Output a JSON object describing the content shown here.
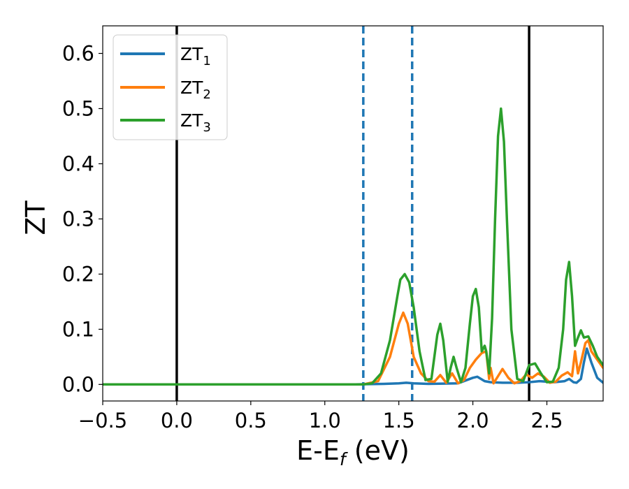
{
  "chart_data": {
    "type": "line",
    "xlabel": "E-E",
    "xlabel_sub": "f",
    "xlabel_unit": " (eV)",
    "ylabel": "ZT",
    "xlim": [
      -0.5,
      2.88
    ],
    "ylim": [
      -0.03,
      0.65
    ],
    "xticks": [
      -0.5,
      0.0,
      0.5,
      1.0,
      1.5,
      2.0,
      2.5
    ],
    "xtick_labels": [
      "−0.5",
      "0.0",
      "0.5",
      "1.0",
      "1.5",
      "2.0",
      "2.5"
    ],
    "yticks": [
      0.0,
      0.1,
      0.2,
      0.3,
      0.4,
      0.5,
      0.6
    ],
    "ytick_labels": [
      "0.0",
      "0.1",
      "0.2",
      "0.3",
      "0.4",
      "0.5",
      "0.6"
    ],
    "grid": false,
    "legend_position": "top-left",
    "vlines": [
      {
        "x": 0.0,
        "style": "solid",
        "color": "#000000"
      },
      {
        "x": 2.38,
        "style": "solid",
        "color": "#000000"
      },
      {
        "x": 1.26,
        "style": "dashed",
        "color": "#1f77b4"
      },
      {
        "x": 1.59,
        "style": "dashed",
        "color": "#1f77b4"
      }
    ],
    "series": [
      {
        "name": "ZT",
        "name_sub": "1",
        "color": "#1f77b4",
        "x": [
          -0.5,
          1.2,
          1.4,
          1.5,
          1.55,
          1.6,
          1.7,
          1.9,
          2.0,
          2.03,
          2.08,
          2.12,
          2.2,
          2.3,
          2.38,
          2.45,
          2.55,
          2.62,
          2.65,
          2.68,
          2.7,
          2.73,
          2.75,
          2.77,
          2.8,
          2.84,
          2.88
        ],
        "y": [
          0.0,
          0.0,
          0.001,
          0.002,
          0.003,
          0.002,
          0.001,
          0.002,
          0.012,
          0.014,
          0.006,
          0.004,
          0.003,
          0.003,
          0.004,
          0.006,
          0.004,
          0.006,
          0.01,
          0.004,
          0.003,
          0.01,
          0.04,
          0.065,
          0.04,
          0.012,
          0.003
        ]
      },
      {
        "name": "ZT",
        "name_sub": "2",
        "color": "#ff7f0e",
        "x": [
          -0.5,
          1.26,
          1.36,
          1.44,
          1.5,
          1.53,
          1.56,
          1.6,
          1.65,
          1.7,
          1.74,
          1.78,
          1.82,
          1.86,
          1.9,
          1.94,
          1.98,
          2.02,
          2.06,
          2.09,
          2.11,
          2.12,
          2.14,
          2.17,
          2.2,
          2.24,
          2.28,
          2.32,
          2.36,
          2.4,
          2.44,
          2.48,
          2.52,
          2.56,
          2.6,
          2.64,
          2.67,
          2.69,
          2.71,
          2.73,
          2.76,
          2.78,
          2.8,
          2.84,
          2.88
        ],
        "y": [
          0.0,
          0.0,
          0.006,
          0.05,
          0.11,
          0.13,
          0.11,
          0.05,
          0.02,
          0.006,
          0.005,
          0.017,
          0.003,
          0.02,
          0.002,
          0.008,
          0.03,
          0.045,
          0.057,
          0.06,
          0.01,
          0.03,
          0.002,
          0.015,
          0.028,
          0.012,
          0.002,
          0.006,
          0.018,
          0.012,
          0.02,
          0.014,
          0.003,
          0.005,
          0.016,
          0.022,
          0.015,
          0.06,
          0.02,
          0.04,
          0.075,
          0.08,
          0.06,
          0.045,
          0.03
        ]
      },
      {
        "name": "ZT",
        "name_sub": "3",
        "color": "#2ca02c",
        "x": [
          -0.5,
          1.26,
          1.32,
          1.38,
          1.44,
          1.49,
          1.51,
          1.54,
          1.57,
          1.6,
          1.64,
          1.68,
          1.72,
          1.76,
          1.78,
          1.8,
          1.83,
          1.85,
          1.87,
          1.89,
          1.92,
          1.95,
          1.98,
          2.0,
          2.02,
          2.04,
          2.06,
          2.08,
          2.09,
          2.11,
          2.13,
          2.15,
          2.17,
          2.19,
          2.21,
          2.23,
          2.26,
          2.3,
          2.34,
          2.38,
          2.42,
          2.46,
          2.5,
          2.54,
          2.58,
          2.61,
          2.63,
          2.65,
          2.67,
          2.69,
          2.71,
          2.73,
          2.75,
          2.78,
          2.81,
          2.84,
          2.88
        ],
        "y": [
          0.0,
          0.0,
          0.002,
          0.02,
          0.08,
          0.16,
          0.19,
          0.2,
          0.185,
          0.14,
          0.06,
          0.008,
          0.01,
          0.09,
          0.11,
          0.08,
          0.005,
          0.03,
          0.05,
          0.03,
          0.004,
          0.03,
          0.11,
          0.16,
          0.173,
          0.14,
          0.06,
          0.07,
          0.06,
          0.02,
          0.12,
          0.3,
          0.45,
          0.5,
          0.44,
          0.3,
          0.1,
          0.01,
          0.006,
          0.035,
          0.038,
          0.02,
          0.004,
          0.005,
          0.03,
          0.1,
          0.19,
          0.222,
          0.16,
          0.07,
          0.085,
          0.098,
          0.085,
          0.087,
          0.07,
          0.05,
          0.035
        ]
      }
    ]
  }
}
